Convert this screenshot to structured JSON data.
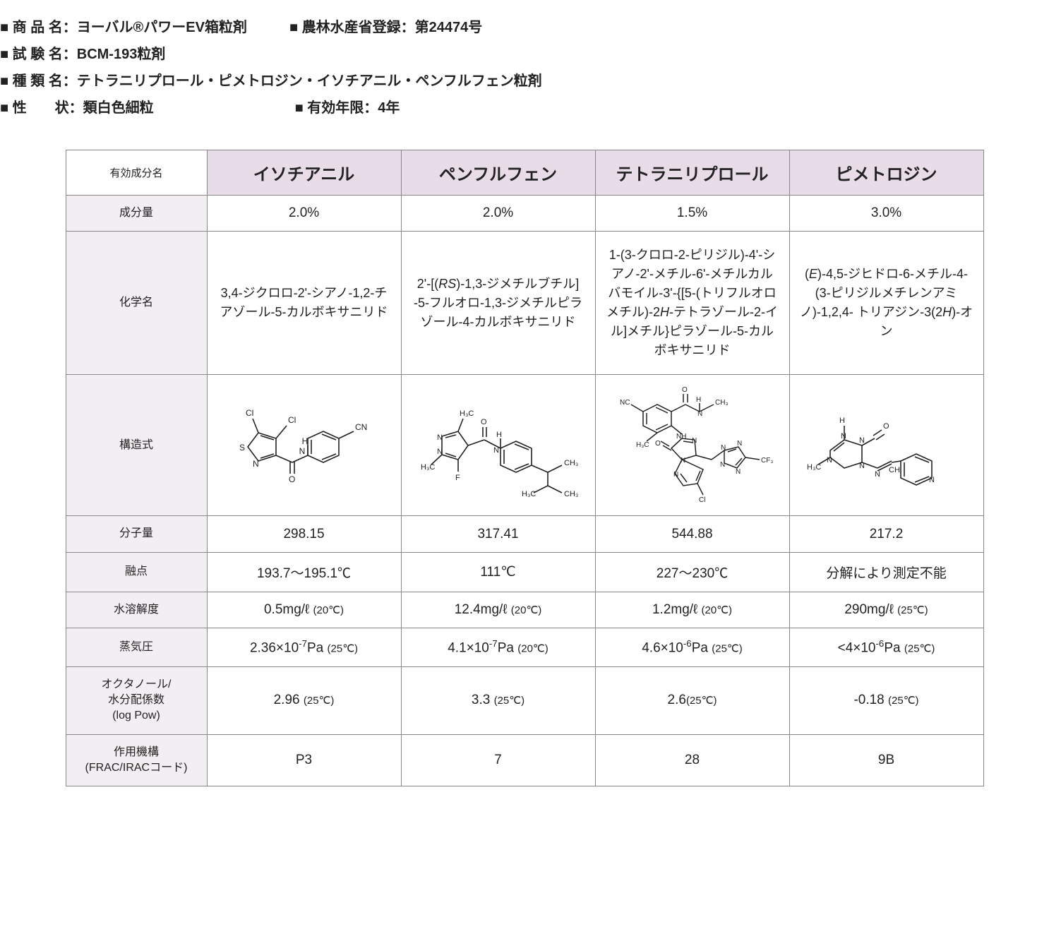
{
  "colors": {
    "header_bg": "#e8dce8",
    "rowhead_bg": "#f2eef2",
    "border": "#888888",
    "text": "#222222",
    "background": "#ffffff"
  },
  "header": {
    "line1a_label": "■ 商 品 名：",
    "line1a_value": "ヨーバル®パワーEV箱粒剤",
    "line1b_label": "■ 農林水産省登録：",
    "line1b_value": "第24474号",
    "line2_label": "■ 試 験 名：",
    "line2_value": "BCM-193粒剤",
    "line3_label": "■ 種 類 名：",
    "line3_value": "テトラニリプロール・ピメトロジン・イソチアニル・ペンフルフェン粒剤",
    "line4a_label": "■ 性　　状：",
    "line4a_value": "類白色細粒",
    "line4b_label": "■ 有効年限：",
    "line4b_value": "4年"
  },
  "table": {
    "corner": "有効成分名",
    "cols": [
      "イソチアニル",
      "ペンフルフェン",
      "テトラニリプロール",
      "ピメトロジン"
    ],
    "rows": {
      "amount": {
        "label": "成分量",
        "v": [
          "2.0%",
          "2.0%",
          "1.5%",
          "3.0%"
        ]
      },
      "chemname": {
        "label": "化学名",
        "v": [
          "3,4-ジクロロ-2'-シアノ-1,2-チアゾール-5-カルボキサニリド",
          "2'-[(RS)-1,3-ジメチルブチル] -5-フルオロ-1,3-ジメチルピラゾール-4-カルボキサニリド",
          "1-(3-クロロ-2-ピリジル)-4'-シアノ-2'-メチル-6'-メチルカルバモイル-3'-{[5-(トリフルオロメチル)-2H-テトラゾール-2-イル]メチル}ピラゾール-5-カルボキサニリド",
          "(E)-4,5-ジヒドロ-6-メチル-4-(3-ピリジルメチレンアミノ)-1,2,4- トリアジン-3(2H)-オン"
        ]
      },
      "structure": {
        "label": "構造式"
      },
      "mw": {
        "label": "分子量",
        "v": [
          "298.15",
          "317.41",
          "544.88",
          "217.2"
        ]
      },
      "mp": {
        "label": "融点",
        "v": [
          "193.7～195.1℃",
          "111℃",
          "227～230℃",
          "分解により測定不能"
        ]
      },
      "solub": {
        "label": "水溶解度",
        "main": [
          "0.5mg/ℓ",
          "12.4mg/ℓ",
          "1.2mg/ℓ",
          "290mg/ℓ"
        ],
        "cond": [
          "(20℃)",
          "(20℃)",
          "(20℃)",
          "(25℃)"
        ]
      },
      "vapor": {
        "label": "蒸気圧",
        "coef": [
          "2.36×10",
          "4.1×10",
          "4.6×10",
          "<4×10"
        ],
        "expo": [
          "-7",
          "-7",
          "-6",
          "-6"
        ],
        "unit": [
          "Pa",
          "Pa",
          "Pa",
          "Pa"
        ],
        "cond": [
          "(25℃)",
          "(20℃)",
          "(25℃)",
          "(25℃)"
        ]
      },
      "logpow": {
        "label": "オクタノール/\n水分配係数\n(log Pow)",
        "v": [
          "2.96",
          "3.3",
          "2.6",
          "-0.18"
        ],
        "cond": [
          "(25℃)",
          "(25℃)",
          "(25℃)",
          "(25℃)"
        ]
      },
      "moa": {
        "label": "作用機構\n(FRAC/IRACコード)",
        "v": [
          "P3",
          "7",
          "28",
          "9B"
        ]
      }
    }
  },
  "struct_labels": {
    "Cl": "Cl",
    "CN": "CN",
    "NC": "NC",
    "S": "S",
    "N": "N",
    "O": "O",
    "H": "H",
    "F": "F",
    "CH3": "CH₃",
    "H3C": "H₃C",
    "NH": "NH",
    "CF3": "CF₃",
    "CH": "CH"
  }
}
